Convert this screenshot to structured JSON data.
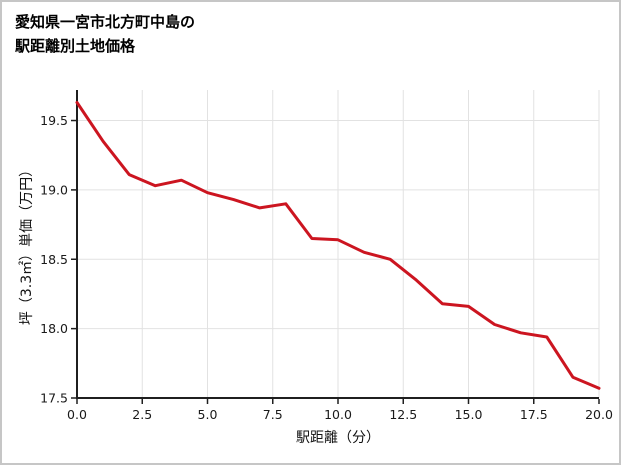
{
  "page": {
    "title_line1": "愛知県一宮市北方町中島の",
    "title_line2": "駅距離別土地価格"
  },
  "colors": {
    "line": "#cc1520",
    "grid": "#e2e2e2",
    "axis": "#1f1f1f",
    "text": "#1a1a1a",
    "border": "#c6c6c6",
    "background": "#ffffff"
  },
  "chart_data": {
    "type": "line",
    "title": "愛知県一宮市北方町中島の駅距離別土地価格",
    "xlabel": "駅距離（分）",
    "ylabel": "坪（3.3㎡）単価（万円）",
    "x": [
      0,
      1,
      2,
      3,
      4,
      5,
      6,
      7,
      8,
      9,
      10,
      11,
      12,
      13,
      14,
      15,
      16,
      17,
      18,
      19,
      20
    ],
    "values": [
      19.63,
      19.35,
      19.11,
      19.03,
      19.07,
      18.98,
      18.93,
      18.87,
      18.9,
      18.65,
      18.64,
      18.55,
      18.5,
      18.35,
      18.18,
      18.16,
      18.03,
      17.97,
      17.94,
      17.65,
      17.57
    ],
    "xlim": [
      0,
      20
    ],
    "ylim": [
      17.5,
      19.72
    ],
    "x_ticks": [
      "0.0",
      "2.5",
      "5.0",
      "7.5",
      "10.0",
      "12.5",
      "15.0",
      "17.5",
      "20.0"
    ],
    "y_ticks": [
      "17.5",
      "18.0",
      "18.5",
      "19.0",
      "19.5"
    ],
    "grid": true,
    "legend": false
  }
}
